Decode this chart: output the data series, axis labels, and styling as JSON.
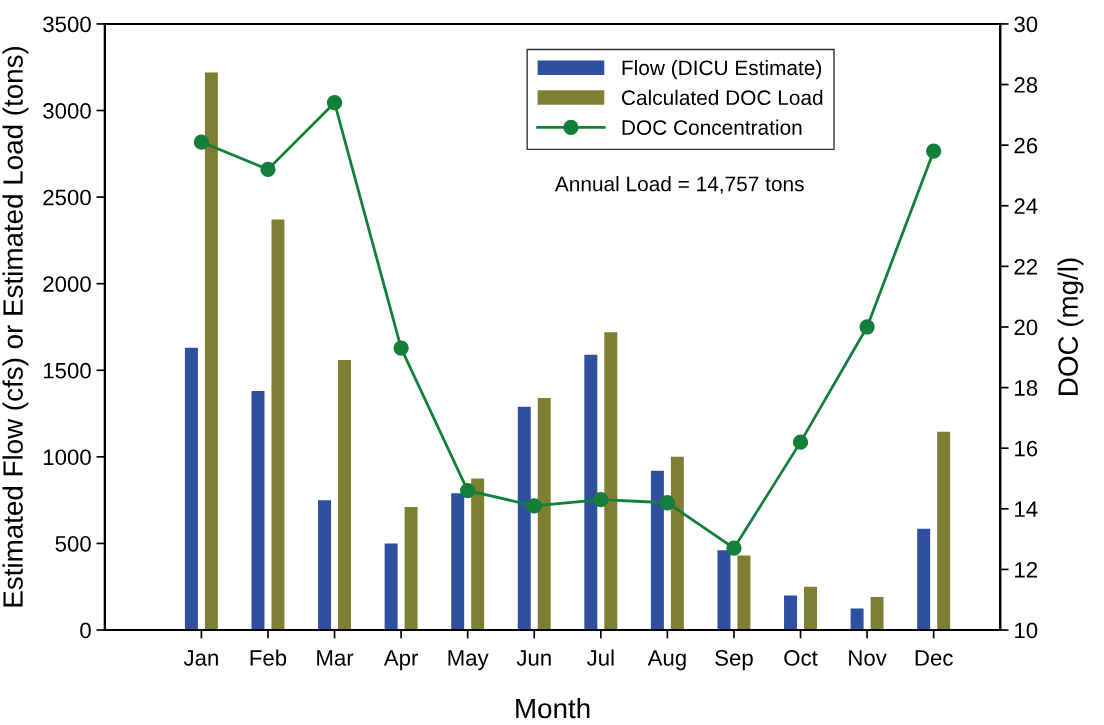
{
  "chart_data": {
    "type": "bar",
    "categories": [
      "Jan",
      "Feb",
      "Mar",
      "Apr",
      "May",
      "Jun",
      "Jul",
      "Aug",
      "Sep",
      "Oct",
      "Nov",
      "Dec"
    ],
    "series": [
      {
        "name": "Flow (DICU Estimate)",
        "color": "#2f4f9f",
        "values": [
          1630,
          1380,
          750,
          500,
          790,
          1290,
          1590,
          920,
          460,
          200,
          125,
          585
        ]
      },
      {
        "name": "Calculated DOC Load",
        "color": "#7f7f33",
        "values": [
          3220,
          2370,
          1560,
          710,
          875,
          1340,
          1720,
          1000,
          430,
          250,
          190,
          1145
        ]
      },
      {
        "name": "DOC Concentration",
        "type": "line",
        "axis": "y2",
        "color": "#137f3b",
        "values": [
          26.1,
          25.2,
          27.4,
          19.3,
          14.6,
          14.1,
          14.3,
          14.2,
          12.7,
          16.2,
          20.0,
          25.8
        ]
      }
    ],
    "xlabel": "Month",
    "ylabel": "Estimated Flow (cfs) or Estimated Load (tons)",
    "y2label": "DOC (mg/l)",
    "ylim": [
      0,
      3500
    ],
    "yticks": [
      0,
      500,
      1000,
      1500,
      2000,
      2500,
      3000,
      3500
    ],
    "y2lim": [
      10,
      30
    ],
    "y2ticks": [
      10,
      12,
      14,
      16,
      18,
      20,
      22,
      24,
      26,
      28,
      30
    ],
    "annotations": [
      "Annual Load = 14,757 tons"
    ],
    "marker": "circle",
    "line_style": "solid",
    "legend": "top",
    "grid": false
  }
}
